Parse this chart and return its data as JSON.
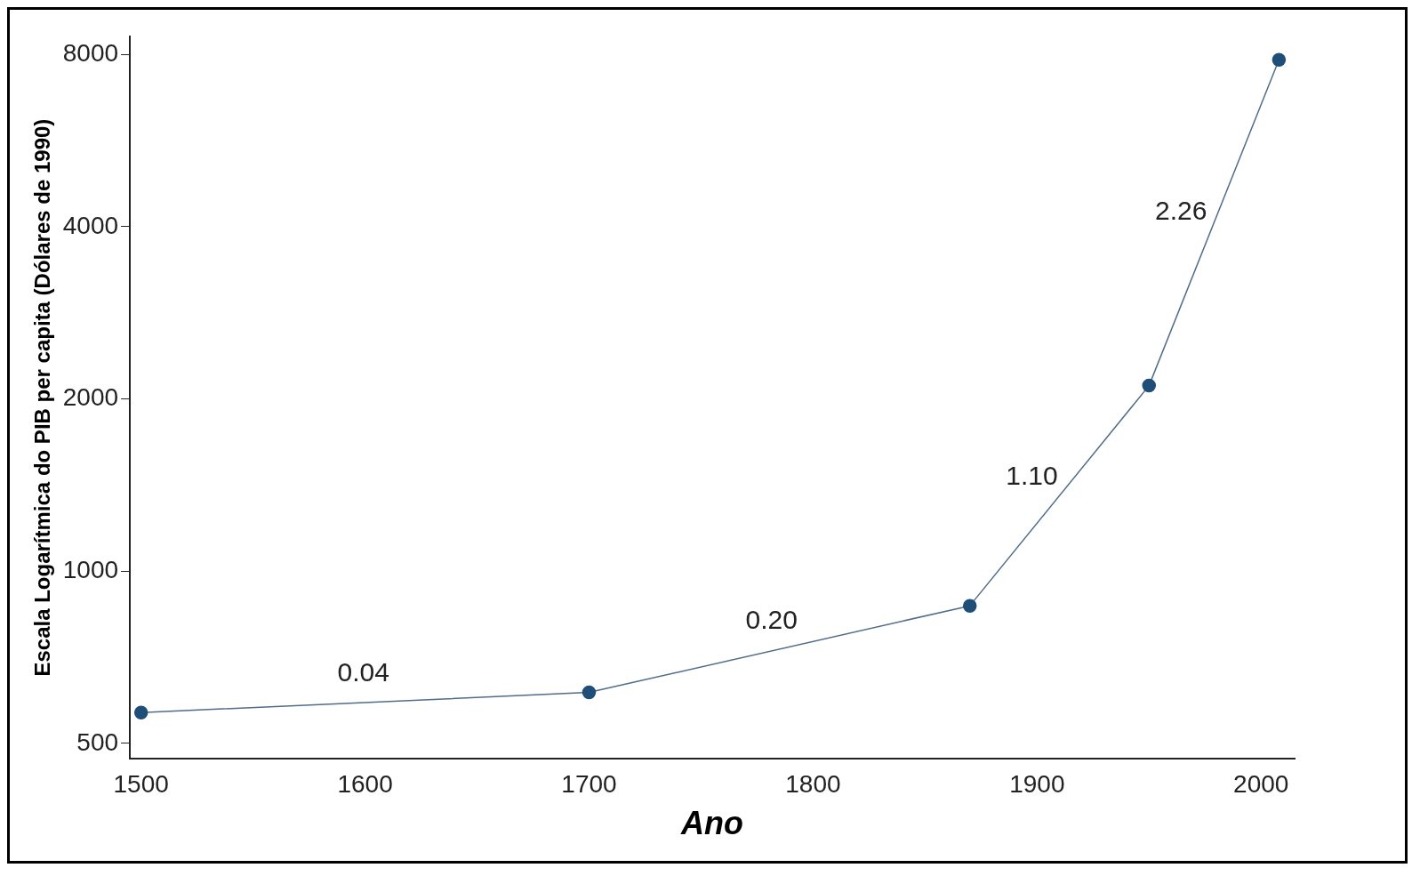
{
  "chart_data": {
    "type": "line",
    "xlabel": "Ano",
    "ylabel": "Escala Logarítmica do PIB per capita (Dólares de 1990)",
    "x": [
      1500,
      1700,
      1870,
      1950,
      2008
    ],
    "series": [
      {
        "color": "#1f4e79",
        "values": [
          566,
          614,
          870,
          2110,
          7830
        ]
      }
    ],
    "log": "y",
    "xlim": [
      1495,
      2015
    ],
    "xticks": [
      1500,
      1600,
      1700,
      1800,
      1900,
      2000
    ],
    "ylim": [
      470,
      8600
    ],
    "yticks": [
      500,
      1000,
      2000,
      4000,
      8000
    ],
    "grid": false,
    "legend": false,
    "marker": "circle",
    "line_style": "solid",
    "annotations": [
      "0.04",
      "0.20",
      "1.10",
      "2.26"
    ]
  }
}
